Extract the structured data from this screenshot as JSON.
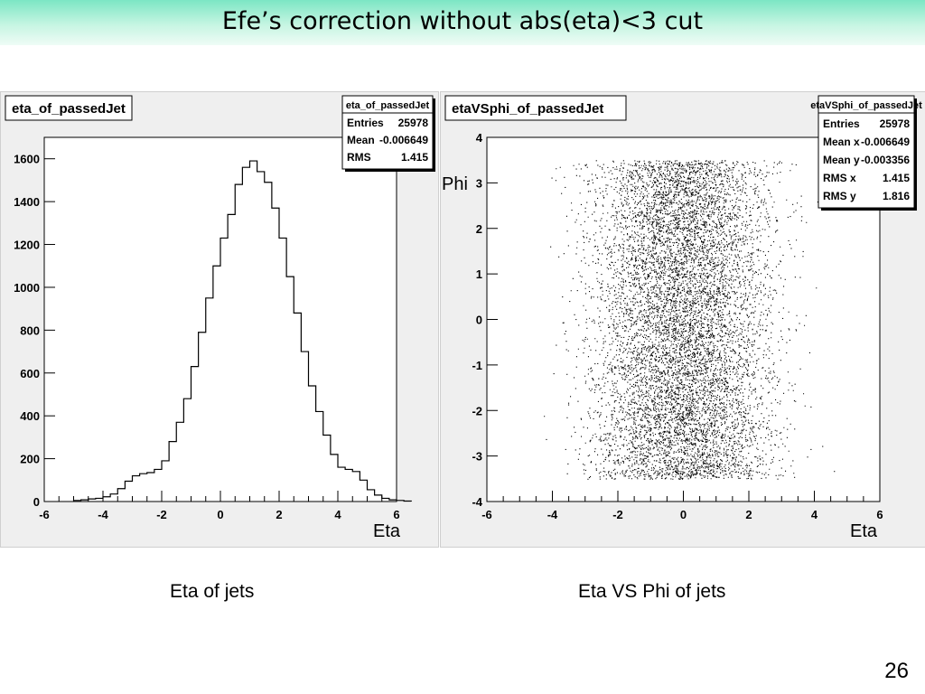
{
  "slide": {
    "title": "Efe’s correction without abs(eta)<3 cut",
    "page_number": "26",
    "captions": {
      "left": "Eta of jets",
      "right": "Eta VS Phi of jets"
    }
  },
  "colors": {
    "title_gradient_top": "#7ce6c4",
    "title_gradient_bottom": "#effcf6",
    "canvas_bg": "#efefef",
    "plot_bg": "#ffffff",
    "line": "#000000"
  },
  "chart_data": [
    {
      "type": "histogram",
      "title": "eta_of_passedJet",
      "xlabel": "Eta",
      "ylabel": "",
      "xlim": [
        -6,
        6
      ],
      "ylim": [
        0,
        1700
      ],
      "x_ticks": [
        "-6",
        "-4",
        "-2",
        "0",
        "2",
        "4",
        "6"
      ],
      "y_ticks": [
        "0",
        "200",
        "400",
        "600",
        "800",
        "1000",
        "1200",
        "1400",
        "1600"
      ],
      "grid": false,
      "legend_position": "top-right",
      "stats": {
        "name": "eta_of_passedJet",
        "rows": [
          [
            "Entries",
            "25978"
          ],
          [
            "Mean",
            "-0.006649"
          ],
          [
            "RMS",
            "1.415"
          ]
        ]
      },
      "bins": {
        "x_low": -5.0,
        "bin_width": 0.25,
        "counts": [
          5,
          8,
          12,
          15,
          22,
          35,
          60,
          95,
          120,
          130,
          135,
          150,
          190,
          280,
          370,
          480,
          630,
          790,
          950,
          1100,
          1230,
          1340,
          1480,
          1560,
          1590,
          1540,
          1490,
          1370,
          1230,
          1050,
          880,
          700,
          540,
          420,
          310,
          220,
          160,
          150,
          140,
          100,
          55,
          30,
          15,
          8,
          5,
          2
        ]
      }
    },
    {
      "type": "scatter",
      "title": "etaVSphi_of_passedJet",
      "xlabel": "Eta",
      "ylabel": "Phi",
      "xlim": [
        -6,
        6
      ],
      "ylim": [
        -4,
        4
      ],
      "x_ticks": [
        "-6",
        "-4",
        "-2",
        "0",
        "2",
        "4",
        "6"
      ],
      "y_ticks": [
        "-4",
        "-3",
        "-2",
        "-1",
        "0",
        "1",
        "2",
        "3",
        "4"
      ],
      "grid": false,
      "legend_position": "top-right",
      "stats": {
        "name": "etaVSphi_of_passedJet",
        "rows": [
          [
            "Entries",
            "25978"
          ],
          [
            "Mean x",
            "-0.006649"
          ],
          [
            "Mean y",
            "-0.003356"
          ],
          [
            "RMS x",
            "1.415"
          ],
          [
            "RMS y",
            "1.816"
          ]
        ]
      },
      "phi_range": [
        -3.5,
        3.5
      ],
      "eta_rms": 1.415
    }
  ]
}
